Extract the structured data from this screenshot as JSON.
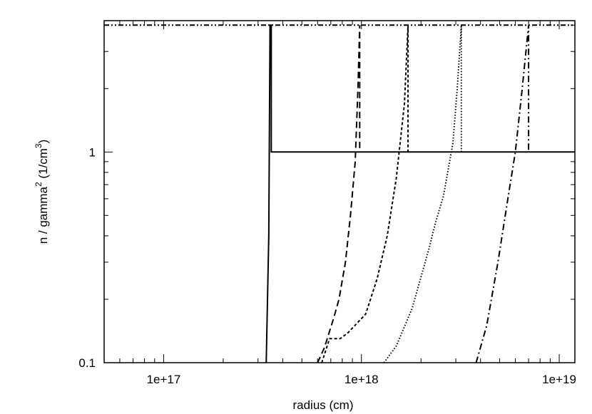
{
  "chart_data": {
    "type": "line",
    "title": "",
    "xlabel": "radius (cm)",
    "ylabel": {
      "base": "n / gamma",
      "sup1": "2",
      "mid": " (1/cm",
      "sup2": "3",
      "end": ")"
    },
    "x_scale": "log",
    "y_scale": "log",
    "xlim": [
      5e+16,
      1.2e+19
    ],
    "ylim": [
      0.1,
      4.2
    ],
    "x_ticks": [
      {
        "value": 1e+17,
        "label": "1e+17"
      },
      {
        "value": 1e+18,
        "label": "1e+18"
      },
      {
        "value": 1e+19,
        "label": "1e+19"
      }
    ],
    "y_ticks": [
      {
        "value": 0.1,
        "label": "0.1"
      },
      {
        "value": 1,
        "label": "1"
      }
    ],
    "grid": false,
    "legend": "none",
    "series": [
      {
        "style": "dash-dot-dot",
        "points": [
          [
            5e+16,
            4.0
          ],
          [
            1.2e+19,
            4.0
          ]
        ]
      },
      {
        "style": "solid",
        "points": [
          [
            3.3e+17,
            0.1
          ],
          [
            3.4e+17,
            0.4
          ],
          [
            3.45e+17,
            4.0
          ],
          [
            3.5e+17,
            4.0
          ],
          [
            3.5e+17,
            1.0
          ],
          [
            1.2e+19,
            1.0
          ]
        ]
      },
      {
        "style": "long-dash",
        "points": [
          [
            6e+17,
            0.1
          ],
          [
            6.5e+17,
            0.118
          ],
          [
            7.2e+17,
            0.16
          ],
          [
            7.7e+17,
            0.2
          ],
          [
            8.3e+17,
            0.3
          ],
          [
            8.8e+17,
            0.5
          ],
          [
            9.3e+17,
            0.9
          ],
          [
            9.6e+17,
            2.0
          ],
          [
            9.8e+17,
            4.0
          ],
          [
            9.8e+17,
            1.0
          ]
        ]
      },
      {
        "style": "short-dash",
        "points": [
          [
            6.3e+17,
            0.1
          ],
          [
            6.9e+17,
            0.13
          ],
          [
            7.8e+17,
            0.13
          ],
          [
            8.5e+17,
            0.138
          ],
          [
            1.05e+18,
            0.17
          ],
          [
            1.2e+18,
            0.25
          ],
          [
            1.35e+18,
            0.4
          ],
          [
            1.5e+18,
            0.75
          ],
          [
            1.65e+18,
            1.7
          ],
          [
            1.72e+18,
            4.0
          ],
          [
            1.72e+18,
            1.0
          ]
        ]
      },
      {
        "style": "dotted",
        "points": [
          [
            1.3e+18,
            0.1
          ],
          [
            1.5e+18,
            0.12
          ],
          [
            1.8e+18,
            0.18
          ],
          [
            2.2e+18,
            0.35
          ],
          [
            2.35e+18,
            0.45
          ],
          [
            2.6e+18,
            0.62
          ],
          [
            2.9e+18,
            1.1
          ],
          [
            3.05e+18,
            2.0
          ],
          [
            3.2e+18,
            4.0
          ],
          [
            3.2e+18,
            1.0
          ]
        ]
      },
      {
        "style": "dash-dot",
        "points": [
          [
            3.8e+18,
            0.1
          ],
          [
            4.3e+18,
            0.15
          ],
          [
            4.9e+18,
            0.3
          ],
          [
            5.5e+18,
            0.6
          ],
          [
            6e+18,
            1.0
          ],
          [
            6.5e+18,
            2.0
          ],
          [
            7e+18,
            4.0
          ],
          [
            7e+18,
            1.0
          ]
        ]
      }
    ]
  }
}
